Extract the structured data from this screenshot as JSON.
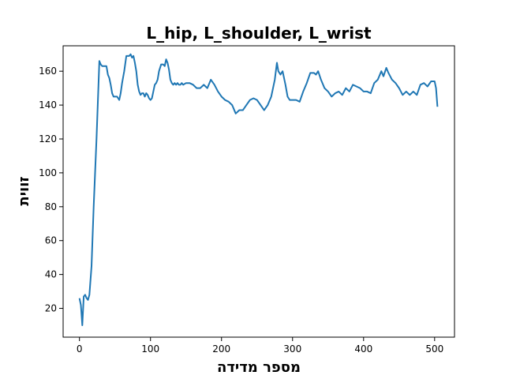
{
  "chart_data": {
    "type": "line",
    "title": "L_hip, L_shoulder, L_wrist",
    "xlabel": "מספר מדידה",
    "ylabel": "זווית",
    "xlim": [
      -23,
      528
    ],
    "ylim": [
      3,
      175
    ],
    "xticks": [
      0,
      100,
      200,
      300,
      400,
      500
    ],
    "yticks": [
      20,
      40,
      60,
      80,
      100,
      120,
      140,
      160
    ],
    "grid": false,
    "series_color": "#1f77b4",
    "series": [
      {
        "x": [
          0,
          2,
          4,
          6,
          8,
          10,
          12,
          14,
          17,
          20,
          24,
          28,
          30,
          32,
          35,
          38,
          40,
          42,
          44,
          46,
          48,
          50,
          53,
          56,
          58,
          60,
          63,
          66,
          70,
          72,
          74,
          76,
          78,
          80,
          82,
          84,
          86,
          88,
          90,
          92,
          94,
          96,
          98,
          100,
          102,
          104,
          106,
          108,
          110,
          112,
          115,
          118,
          120,
          122,
          124,
          126,
          128,
          130,
          132,
          134,
          136,
          138,
          140,
          142,
          144,
          146,
          150,
          155,
          160,
          165,
          170,
          175,
          180,
          185,
          190,
          195,
          200,
          205,
          210,
          215,
          220,
          225,
          230,
          235,
          240,
          245,
          250,
          255,
          260,
          265,
          270,
          275,
          278,
          280,
          283,
          286,
          290,
          293,
          296,
          300,
          305,
          310,
          315,
          320,
          325,
          330,
          333,
          336,
          340,
          345,
          350,
          355,
          360,
          365,
          370,
          375,
          380,
          385,
          390,
          395,
          400,
          405,
          410,
          415,
          420,
          425,
          428,
          432,
          435,
          440,
          445,
          450,
          455,
          460,
          465,
          470,
          475,
          480,
          485,
          490,
          495,
          500,
          502,
          504
        ],
        "y": [
          26,
          22,
          10,
          27,
          28,
          26,
          25,
          28,
          45,
          80,
          120,
          166,
          164,
          163,
          163,
          163,
          158,
          156,
          152,
          147,
          145,
          145,
          145,
          143,
          147,
          153,
          160,
          169,
          169,
          170,
          168,
          169,
          165,
          160,
          152,
          148,
          146,
          147,
          147,
          145,
          147,
          146,
          144,
          143,
          144,
          148,
          152,
          153,
          155,
          160,
          164,
          164,
          163,
          167,
          165,
          161,
          155,
          153,
          152,
          153,
          152,
          153,
          152,
          152,
          153,
          152,
          153,
          153,
          152,
          150,
          150,
          152,
          150,
          155,
          152,
          148,
          145,
          143,
          142,
          140,
          135,
          137,
          137,
          140,
          143,
          144,
          143,
          140,
          137,
          140,
          145,
          155,
          165,
          160,
          158,
          160,
          152,
          145,
          143,
          143,
          143,
          142,
          148,
          153,
          159,
          159,
          158,
          160,
          155,
          150,
          148,
          145,
          147,
          148,
          146,
          150,
          148,
          152,
          151,
          150,
          148,
          148,
          147,
          153,
          155,
          160,
          157,
          162,
          159,
          155,
          153,
          150,
          146,
          148,
          146,
          148,
          146,
          152,
          153,
          151,
          154,
          154,
          150,
          139
        ]
      }
    ]
  }
}
